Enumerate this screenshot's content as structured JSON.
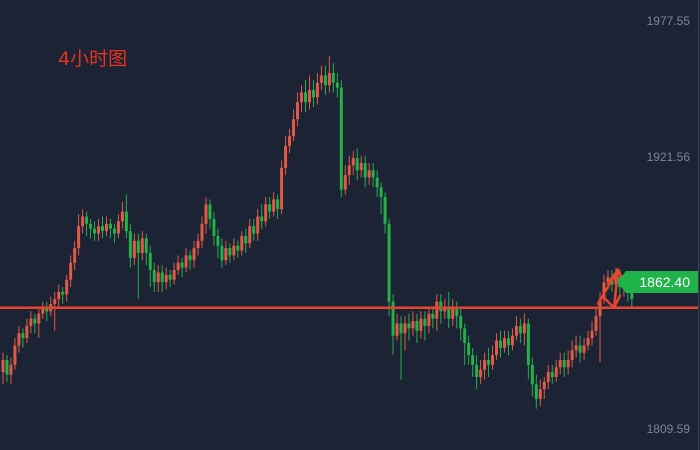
{
  "chart_data": {
    "type": "candlestick",
    "title": "4小时图",
    "colors": {
      "background": "#1b2335",
      "up": "#e05a47",
      "down": "#25b04a",
      "line": "#e8452f",
      "title": "#e8321e",
      "tag": "#1fb34a"
    },
    "y_axis": {
      "ticks": [
        1977.55,
        1921.56,
        1809.59
      ],
      "range": [
        1801,
        1986
      ],
      "position": "right"
    },
    "horizontal_line": 1859.5,
    "last_price": "1862.40",
    "annotation": "double-headed arrow indicating price oscillation near the support line",
    "candles": [
      [
        1833,
        1838,
        1828,
        1841
      ],
      [
        1838,
        1832,
        1829,
        1840
      ],
      [
        1832,
        1836,
        1828,
        1839
      ],
      [
        1836,
        1844,
        1834,
        1847
      ],
      [
        1844,
        1849,
        1841,
        1852
      ],
      [
        1849,
        1847,
        1843,
        1851
      ],
      [
        1847,
        1852,
        1845,
        1855
      ],
      [
        1852,
        1855,
        1849,
        1858
      ],
      [
        1855,
        1853,
        1849,
        1857
      ],
      [
        1853,
        1857,
        1847,
        1860
      ],
      [
        1857,
        1860,
        1855,
        1862
      ],
      [
        1860,
        1858,
        1854,
        1862
      ],
      [
        1858,
        1861,
        1856,
        1864
      ],
      [
        1861,
        1863,
        1850,
        1866
      ],
      [
        1863,
        1866,
        1860,
        1869
      ],
      [
        1866,
        1865,
        1861,
        1868
      ],
      [
        1865,
        1871,
        1862,
        1873
      ],
      [
        1871,
        1878,
        1868,
        1881
      ],
      [
        1878,
        1884,
        1875,
        1887
      ],
      [
        1884,
        1893,
        1881,
        1898
      ],
      [
        1893,
        1897,
        1890,
        1900
      ],
      [
        1897,
        1894,
        1889,
        1899
      ],
      [
        1894,
        1892,
        1888,
        1896
      ],
      [
        1892,
        1890,
        1887,
        1895
      ],
      [
        1890,
        1893,
        1887,
        1896
      ],
      [
        1893,
        1891,
        1888,
        1897
      ],
      [
        1891,
        1894,
        1889,
        1897
      ],
      [
        1894,
        1892,
        1888,
        1896
      ],
      [
        1892,
        1890,
        1886,
        1894
      ],
      [
        1890,
        1895,
        1888,
        1898
      ],
      [
        1895,
        1899,
        1892,
        1903
      ],
      [
        1899,
        1891,
        1888,
        1906
      ],
      [
        1891,
        1880,
        1876,
        1894
      ],
      [
        1880,
        1887,
        1877,
        1890
      ],
      [
        1887,
        1882,
        1863,
        1890
      ],
      [
        1882,
        1888,
        1879,
        1891
      ],
      [
        1888,
        1882,
        1877,
        1890
      ],
      [
        1882,
        1875,
        1868,
        1885
      ],
      [
        1875,
        1870,
        1866,
        1878
      ],
      [
        1870,
        1874,
        1866,
        1877
      ],
      [
        1874,
        1870,
        1866,
        1877
      ],
      [
        1870,
        1873,
        1867,
        1876
      ],
      [
        1873,
        1871,
        1868,
        1875
      ],
      [
        1871,
        1875,
        1869,
        1878
      ],
      [
        1875,
        1878,
        1873,
        1881
      ],
      [
        1878,
        1876,
        1872,
        1880
      ],
      [
        1876,
        1881,
        1874,
        1884
      ],
      [
        1881,
        1879,
        1875,
        1883
      ],
      [
        1879,
        1884,
        1876,
        1887
      ],
      [
        1884,
        1887,
        1881,
        1890
      ],
      [
        1887,
        1894,
        1884,
        1897
      ],
      [
        1894,
        1902,
        1890,
        1905
      ],
      [
        1902,
        1896,
        1892,
        1904
      ],
      [
        1896,
        1889,
        1885,
        1899
      ],
      [
        1889,
        1885,
        1880,
        1892
      ],
      [
        1885,
        1879,
        1876,
        1888
      ],
      [
        1879,
        1884,
        1877,
        1887
      ],
      [
        1884,
        1881,
        1878,
        1886
      ],
      [
        1881,
        1885,
        1879,
        1888
      ],
      [
        1885,
        1883,
        1880,
        1887
      ],
      [
        1883,
        1889,
        1881,
        1891
      ],
      [
        1889,
        1886,
        1882,
        1892
      ],
      [
        1886,
        1893,
        1884,
        1896
      ],
      [
        1893,
        1890,
        1887,
        1896
      ],
      [
        1890,
        1897,
        1887,
        1900
      ],
      [
        1897,
        1895,
        1892,
        1902
      ],
      [
        1895,
        1902,
        1893,
        1905
      ],
      [
        1902,
        1899,
        1896,
        1905
      ],
      [
        1899,
        1904,
        1897,
        1907
      ],
      [
        1904,
        1900,
        1896,
        1906
      ],
      [
        1900,
        1917,
        1898,
        1920
      ],
      [
        1917,
        1926,
        1914,
        1930
      ],
      [
        1926,
        1930,
        1923,
        1933
      ],
      [
        1930,
        1937,
        1928,
        1941
      ],
      [
        1937,
        1944,
        1934,
        1948
      ],
      [
        1944,
        1948,
        1940,
        1951
      ],
      [
        1948,
        1944,
        1940,
        1953
      ],
      [
        1944,
        1949,
        1941,
        1955
      ],
      [
        1949,
        1946,
        1942,
        1953
      ],
      [
        1946,
        1952,
        1943,
        1956
      ],
      [
        1952,
        1955,
        1949,
        1959
      ],
      [
        1955,
        1951,
        1947,
        1959
      ],
      [
        1951,
        1956,
        1948,
        1963
      ],
      [
        1956,
        1952,
        1948,
        1960
      ],
      [
        1952,
        1950,
        1946,
        1956
      ],
      [
        1950,
        1908,
        1905,
        1953
      ],
      [
        1908,
        1914,
        1906,
        1918
      ],
      [
        1914,
        1918,
        1910,
        1922
      ],
      [
        1918,
        1921,
        1914,
        1924
      ],
      [
        1921,
        1916,
        1912,
        1925
      ],
      [
        1916,
        1919,
        1913,
        1922
      ],
      [
        1919,
        1913,
        1909,
        1922
      ],
      [
        1913,
        1916,
        1910,
        1919
      ],
      [
        1916,
        1913,
        1909,
        1919
      ],
      [
        1913,
        1909,
        1905,
        1916
      ],
      [
        1909,
        1905,
        1898,
        1911
      ],
      [
        1905,
        1894,
        1890,
        1907
      ],
      [
        1894,
        1862,
        1856,
        1896
      ],
      [
        1862,
        1848,
        1840,
        1865
      ],
      [
        1848,
        1853,
        1846,
        1857
      ],
      [
        1853,
        1849,
        1830,
        1856
      ],
      [
        1849,
        1853,
        1842,
        1856
      ],
      [
        1853,
        1851,
        1846,
        1857
      ],
      [
        1851,
        1854,
        1848,
        1858
      ],
      [
        1854,
        1850,
        1845,
        1857
      ],
      [
        1850,
        1855,
        1847,
        1858
      ],
      [
        1855,
        1852,
        1846,
        1858
      ],
      [
        1852,
        1857,
        1849,
        1860
      ],
      [
        1857,
        1855,
        1851,
        1860
      ],
      [
        1855,
        1862,
        1850,
        1865
      ],
      [
        1862,
        1858,
        1853,
        1865
      ],
      [
        1858,
        1860,
        1855,
        1863
      ],
      [
        1860,
        1855,
        1851,
        1866
      ],
      [
        1855,
        1860,
        1852,
        1863
      ],
      [
        1860,
        1856,
        1851,
        1862
      ],
      [
        1856,
        1851,
        1846,
        1859
      ],
      [
        1851,
        1845,
        1836,
        1853
      ],
      [
        1845,
        1840,
        1836,
        1848
      ],
      [
        1840,
        1836,
        1831,
        1843
      ],
      [
        1836,
        1831,
        1826,
        1840
      ],
      [
        1831,
        1834,
        1828,
        1838
      ],
      [
        1834,
        1838,
        1830,
        1841
      ],
      [
        1838,
        1836,
        1831,
        1843
      ],
      [
        1836,
        1840,
        1834,
        1844
      ],
      [
        1840,
        1846,
        1838,
        1849
      ],
      [
        1846,
        1843,
        1839,
        1850
      ],
      [
        1843,
        1847,
        1841,
        1850
      ],
      [
        1847,
        1844,
        1840,
        1850
      ],
      [
        1844,
        1848,
        1842,
        1851
      ],
      [
        1848,
        1852,
        1846,
        1856
      ],
      [
        1852,
        1849,
        1845,
        1855
      ],
      [
        1849,
        1853,
        1844,
        1857
      ],
      [
        1853,
        1836,
        1830,
        1855
      ],
      [
        1836,
        1828,
        1823,
        1839
      ],
      [
        1828,
        1822,
        1818,
        1832
      ],
      [
        1822,
        1826,
        1819,
        1830
      ],
      [
        1826,
        1829,
        1822,
        1831
      ],
      [
        1829,
        1833,
        1826,
        1836
      ],
      [
        1833,
        1831,
        1828,
        1836
      ],
      [
        1831,
        1835,
        1829,
        1838
      ],
      [
        1835,
        1838,
        1832,
        1841
      ],
      [
        1838,
        1835,
        1831,
        1841
      ],
      [
        1835,
        1838,
        1832,
        1842
      ],
      [
        1838,
        1842,
        1835,
        1846
      ],
      [
        1842,
        1844,
        1839,
        1848
      ],
      [
        1844,
        1841,
        1837,
        1848
      ],
      [
        1841,
        1844,
        1838,
        1847
      ],
      [
        1844,
        1847,
        1842,
        1850
      ],
      [
        1847,
        1850,
        1844,
        1854
      ],
      [
        1850,
        1856,
        1848,
        1859
      ],
      [
        1856,
        1863,
        1837,
        1866
      ],
      [
        1863,
        1870,
        1861,
        1873
      ],
      [
        1870,
        1872,
        1867,
        1875
      ],
      [
        1872,
        1869,
        1866,
        1875
      ],
      [
        1869,
        1872,
        1867,
        1876
      ],
      [
        1872,
        1868,
        1865,
        1875
      ],
      [
        1868,
        1870,
        1864,
        1873
      ],
      [
        1870,
        1866,
        1862,
        1872
      ],
      [
        1866,
        1863,
        1859,
        1868
      ]
    ]
  }
}
